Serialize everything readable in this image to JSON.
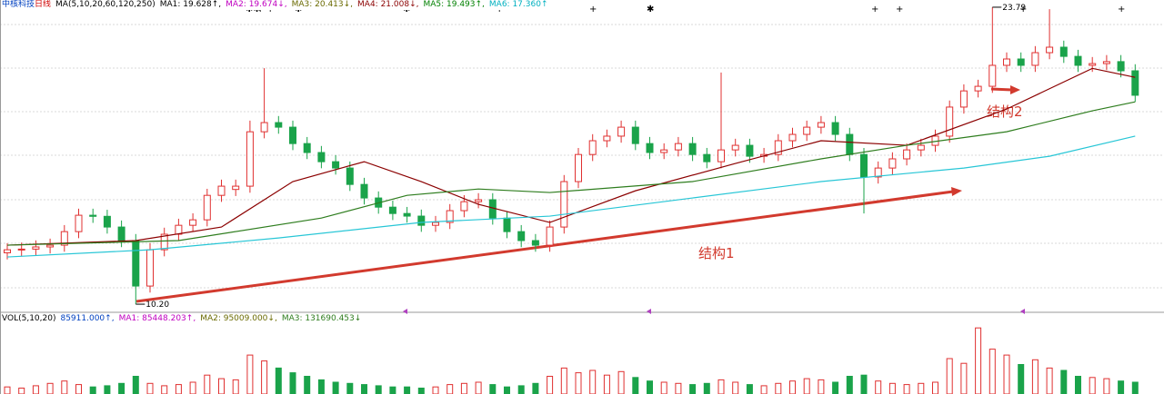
{
  "header": {
    "stock": "中核科技",
    "period": "日线",
    "ma_params": "MA(5,10,20,60,120,250)",
    "ma_values": [
      {
        "text": "MA1: 19.628↑,",
        "color": "#000000"
      },
      {
        "text": "MA2: 19.674↓,",
        "color": "#c000c0"
      },
      {
        "text": "MA3: 20.413↓,",
        "color": "#6a6a00"
      },
      {
        "text": "MA4: 21.008↓,",
        "color": "#8b0000"
      },
      {
        "text": "MA5: 19.493↑,",
        "color": "#008000"
      },
      {
        "text": "MA6: 17.360↑",
        "color": "#00b0c0"
      }
    ]
  },
  "chart_data": {
    "type": "candlestick",
    "up_color": "#e03030",
    "down_color": "#1aa34a",
    "ylim": [
      9.87,
      24.12
    ],
    "open": [
      12.55,
      12.69,
      12.72,
      12.82,
      12.9,
      13.52,
      14.27,
      14.22,
      13.73,
      13.11,
      11.03,
      12.69,
      13.4,
      13.81,
      14.06,
      15.18,
      15.45,
      15.6,
      18.09,
      18.51,
      18.3,
      17.55,
      17.14,
      16.72,
      16.43,
      15.68,
      15.06,
      14.64,
      14.35,
      14.23,
      13.81,
      13.94,
      14.48,
      14.89,
      14.98,
      14.14,
      13.52,
      13.11,
      12.9,
      13.73,
      15.81,
      17.05,
      17.68,
      17.89,
      18.3,
      17.55,
      17.14,
      17.26,
      17.55,
      17.05,
      16.72,
      17.26,
      17.47,
      16.97,
      17.05,
      17.68,
      17.97,
      18.3,
      18.51,
      17.97,
      17.05,
      16.02,
      16.43,
      16.85,
      17.26,
      17.47,
      17.89,
      19.22,
      19.96,
      20.17,
      21.13,
      21.42,
      21.13,
      21.71,
      21.96,
      21.54,
      21.13,
      21.21,
      21.3,
      20.88
    ],
    "high": [
      12.99,
      13.02,
      13.12,
      13.2,
      13.82,
      14.57,
      14.57,
      14.52,
      14.03,
      13.41,
      12.99,
      13.7,
      14.11,
      14.36,
      15.48,
      15.9,
      15.9,
      18.6,
      21.0,
      18.81,
      18.6,
      17.85,
      17.44,
      17.02,
      16.73,
      15.98,
      15.36,
      14.94,
      14.65,
      14.53,
      14.24,
      14.78,
      15.19,
      15.28,
      15.28,
      14.44,
      13.82,
      13.41,
      14.03,
      16.11,
      17.35,
      17.98,
      18.19,
      18.6,
      18.6,
      17.85,
      17.56,
      17.85,
      17.85,
      17.35,
      20.8,
      17.77,
      17.77,
      17.35,
      17.98,
      18.27,
      18.6,
      18.81,
      18.81,
      18.27,
      17.35,
      16.73,
      17.15,
      17.56,
      17.77,
      18.19,
      19.52,
      20.26,
      20.47,
      23.79,
      21.72,
      21.72,
      22.01,
      23.7,
      22.26,
      21.84,
      21.51,
      21.6,
      21.6,
      21.18
    ],
    "low": [
      12.25,
      12.39,
      12.42,
      12.52,
      12.6,
      13.22,
      13.92,
      13.43,
      12.81,
      10.2,
      10.73,
      12.39,
      13.1,
      13.51,
      13.76,
      14.88,
      15.15,
      15.3,
      17.79,
      18.0,
      17.25,
      16.84,
      16.42,
      16.13,
      15.38,
      14.76,
      14.34,
      14.05,
      13.93,
      13.51,
      13.51,
      13.64,
      14.18,
      14.59,
      13.84,
      13.22,
      12.81,
      12.6,
      12.6,
      13.43,
      15.51,
      16.75,
      17.38,
      17.59,
      17.25,
      16.84,
      16.84,
      16.96,
      16.75,
      16.42,
      16.42,
      16.96,
      16.67,
      16.67,
      16.75,
      17.38,
      17.67,
      18.0,
      17.67,
      16.75,
      14.35,
      15.72,
      16.13,
      16.55,
      16.96,
      17.17,
      17.59,
      18.92,
      19.66,
      19.87,
      20.83,
      20.83,
      20.83,
      21.41,
      21.24,
      20.83,
      20.83,
      20.91,
      20.58,
      19.46
    ],
    "close": [
      12.69,
      12.72,
      12.82,
      12.9,
      13.52,
      14.27,
      14.22,
      13.73,
      13.11,
      11.03,
      12.69,
      13.4,
      13.81,
      14.06,
      15.18,
      15.6,
      15.6,
      18.09,
      18.51,
      18.3,
      17.55,
      17.14,
      16.72,
      16.43,
      15.68,
      15.06,
      14.64,
      14.35,
      14.23,
      13.81,
      13.94,
      14.48,
      14.89,
      14.98,
      14.14,
      13.52,
      13.11,
      12.9,
      13.73,
      15.81,
      17.05,
      17.68,
      17.89,
      18.3,
      17.55,
      17.14,
      17.26,
      17.55,
      17.05,
      16.72,
      17.26,
      17.47,
      16.97,
      17.05,
      17.68,
      17.97,
      18.3,
      18.51,
      17.97,
      17.05,
      16.02,
      16.43,
      16.85,
      17.26,
      17.47,
      17.89,
      19.22,
      19.96,
      20.17,
      21.13,
      21.42,
      21.13,
      21.71,
      21.96,
      21.54,
      21.13,
      21.21,
      21.3,
      20.88,
      19.76
    ],
    "ma_lines": [
      {
        "color": "#8b0000",
        "x": [
          0,
          9,
          15,
          20,
          25,
          29,
          33,
          38,
          44,
          51,
          57,
          63,
          70,
          76,
          79
        ],
        "values": [
          12.9,
          13.11,
          13.73,
          15.81,
          16.72,
          15.81,
          14.77,
          13.94,
          15.39,
          16.64,
          17.68,
          17.47,
          19.13,
          20.99,
          20.58
        ]
      },
      {
        "color": "#2e7d1e",
        "x": [
          0,
          12,
          22,
          28,
          33,
          38,
          48,
          57,
          63,
          70,
          76,
          79
        ],
        "values": [
          12.9,
          13.11,
          14.14,
          15.18,
          15.47,
          15.31,
          15.81,
          16.85,
          17.47,
          18.09,
          19.05,
          19.46
        ]
      },
      {
        "color": "#27c6d6",
        "x": [
          0,
          10,
          19,
          29,
          38,
          48,
          57,
          67,
          73,
          79
        ],
        "values": [
          12.36,
          12.69,
          13.23,
          13.94,
          14.23,
          15.06,
          15.81,
          16.43,
          16.97,
          17.89
        ]
      }
    ],
    "annotations": {
      "high_label": "23.79",
      "low_label": "10.20",
      "structure_1": "结构1",
      "structure_2": "结构2"
    },
    "volume": {
      "params": "VOL(5,10,20)",
      "current": "85911.000↑,",
      "ylim": [
        0,
        600000
      ],
      "ma_values": [
        {
          "text": "MA1: 85448.203↑,",
          "color": "#c000c0"
        },
        {
          "text": "MA2: 95009.000↓,",
          "color": "#6a6a00"
        },
        {
          "text": "MA3: 131690.453↓",
          "color": "#2e7d1e"
        }
      ],
      "values": [
        60000,
        50000,
        70000,
        90000,
        110000,
        80000,
        60000,
        70000,
        90000,
        150000,
        90000,
        70000,
        80000,
        100000,
        160000,
        130000,
        120000,
        330000,
        280000,
        220000,
        180000,
        150000,
        120000,
        100000,
        90000,
        80000,
        70000,
        60000,
        60000,
        50000,
        60000,
        80000,
        90000,
        100000,
        80000,
        60000,
        70000,
        90000,
        150000,
        220000,
        180000,
        200000,
        160000,
        190000,
        140000,
        110000,
        100000,
        90000,
        80000,
        90000,
        120000,
        100000,
        80000,
        70000,
        90000,
        110000,
        130000,
        120000,
        100000,
        150000,
        160000,
        110000,
        90000,
        80000,
        90000,
        100000,
        300000,
        260000,
        560000,
        380000,
        330000,
        250000,
        290000,
        220000,
        200000,
        150000,
        140000,
        130000,
        110000,
        100000
      ]
    }
  }
}
